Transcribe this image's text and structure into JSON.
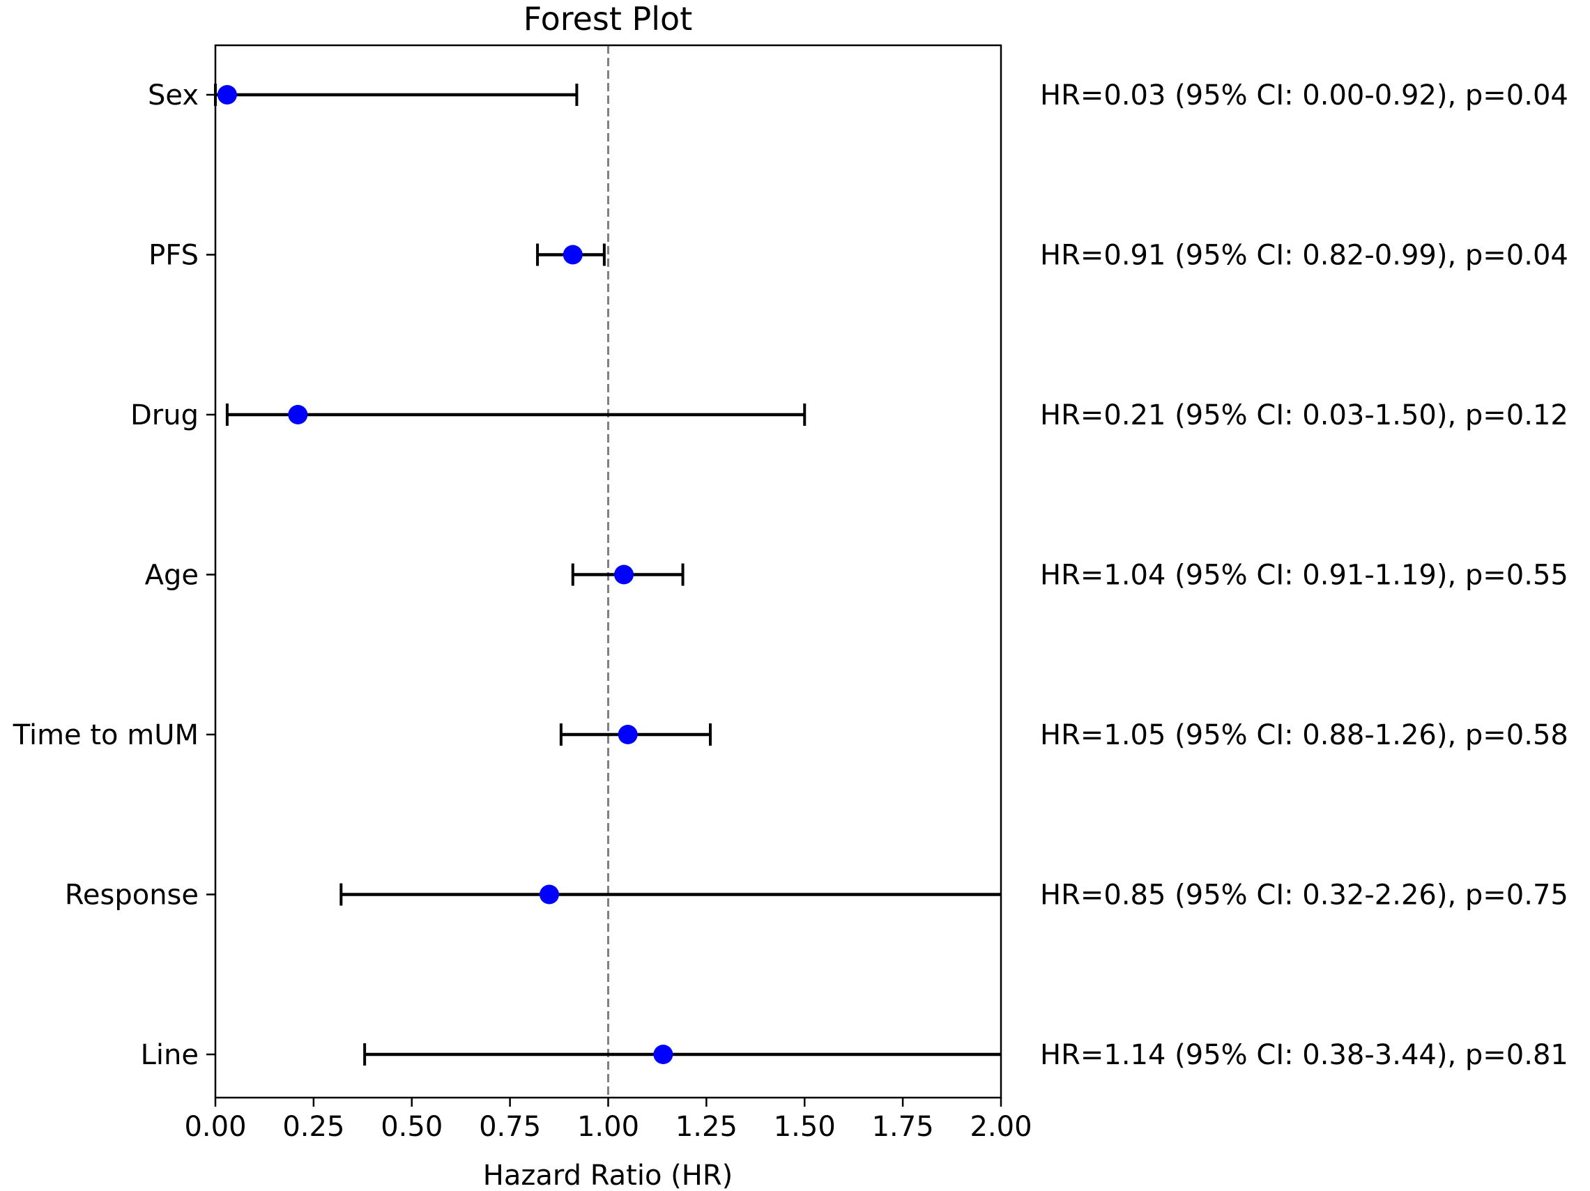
{
  "chart_data": {
    "type": "scatter",
    "title": "Forest Plot",
    "xlabel": "Hazard Ratio (HR)",
    "ylabel": "",
    "xlim": [
      0,
      2
    ],
    "x_ticks": [
      "0.00",
      "0.25",
      "0.50",
      "0.75",
      "1.00",
      "1.25",
      "1.50",
      "1.75",
      "2.00"
    ],
    "reference_line": 1.0,
    "grid": false,
    "legend": "none",
    "colors": {
      "point": "#0000ff",
      "errorbar": "#000000",
      "reference": "#808080"
    },
    "rows": [
      {
        "label": "Sex",
        "hr": 0.03,
        "ci_low": 0.0,
        "ci_high": 0.92,
        "annotation": "HR=0.03 (95% CI: 0.00-0.92), p=0.04"
      },
      {
        "label": "PFS",
        "hr": 0.91,
        "ci_low": 0.82,
        "ci_high": 0.99,
        "annotation": "HR=0.91 (95% CI: 0.82-0.99), p=0.04"
      },
      {
        "label": "Drug",
        "hr": 0.21,
        "ci_low": 0.03,
        "ci_high": 1.5,
        "annotation": "HR=0.21 (95% CI: 0.03-1.50), p=0.12"
      },
      {
        "label": "Age",
        "hr": 1.04,
        "ci_low": 0.91,
        "ci_high": 1.19,
        "annotation": "HR=1.04 (95% CI: 0.91-1.19), p=0.55"
      },
      {
        "label": "Time to mUM",
        "hr": 1.05,
        "ci_low": 0.88,
        "ci_high": 1.26,
        "annotation": "HR=1.05 (95% CI: 0.88-1.26), p=0.58"
      },
      {
        "label": "Response",
        "hr": 0.85,
        "ci_low": 0.32,
        "ci_high": 2.26,
        "annotation": "HR=0.85 (95% CI: 0.32-2.26), p=0.75"
      },
      {
        "label": "Line",
        "hr": 1.14,
        "ci_low": 0.38,
        "ci_high": 3.44,
        "annotation": "HR=1.14 (95% CI: 0.38-3.44), p=0.81"
      }
    ]
  }
}
